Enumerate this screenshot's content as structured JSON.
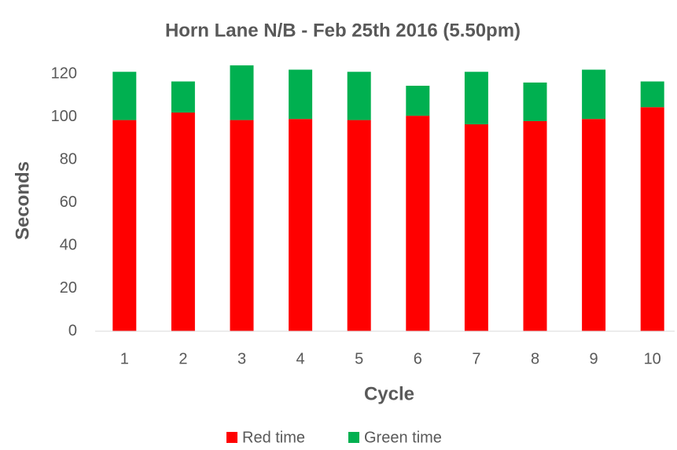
{
  "chart_data": {
    "type": "stacked_bar",
    "title": "Horn Lane N/B - Feb 25th 2016 (5.50pm)",
    "x_label": "Cycle",
    "y_label": "Seconds",
    "categories": [
      "1",
      "2",
      "3",
      "4",
      "5",
      "6",
      "7",
      "8",
      "9",
      "10"
    ],
    "series": [
      {
        "name": "Red time",
        "color": "#ff0000",
        "values": [
          98.5,
          102,
          98.5,
          99,
          98.5,
          100.5,
          96.5,
          98,
          99,
          104.5
        ]
      },
      {
        "name": "Green time",
        "color": "#00b050",
        "values": [
          22.5,
          14.5,
          25.5,
          23,
          22.5,
          14,
          24.5,
          18,
          23,
          12
        ]
      }
    ],
    "ylim": [
      0,
      120
    ],
    "yticks": [
      0,
      20,
      40,
      60,
      80,
      100,
      120
    ],
    "grid": false,
    "legend": "bottom"
  }
}
